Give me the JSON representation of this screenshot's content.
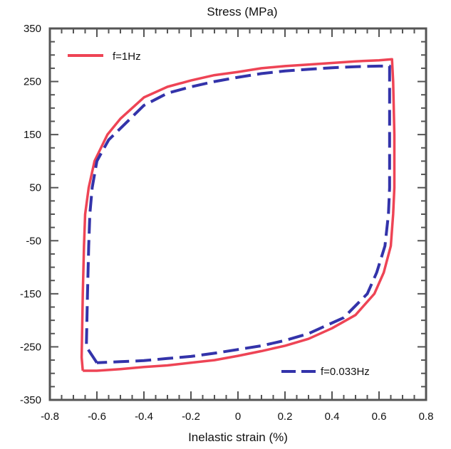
{
  "chart_data": {
    "type": "line",
    "title": "Stress  (MPa)",
    "xlabel": "Inelastic strain  (%)",
    "ylabel": "",
    "xlim": [
      -0.8,
      0.8
    ],
    "ylim": [
      -350,
      350
    ],
    "x_ticks": [
      "-0.8",
      "-0.6",
      "-0.4",
      "-0.2",
      "0",
      "0.2",
      "0.4",
      "0.6",
      "0.8"
    ],
    "y_ticks": [
      "350",
      "250",
      "150",
      "50",
      "-50",
      "-150",
      "-250",
      "-350"
    ],
    "series": [
      {
        "name": "f=1Hz",
        "color": "#ee4455",
        "line_style": "solid",
        "points": [
          [
            -0.66,
            -295
          ],
          [
            -0.665,
            -270
          ],
          [
            -0.66,
            -150
          ],
          [
            -0.655,
            -60
          ],
          [
            -0.65,
            0
          ],
          [
            -0.635,
            50
          ],
          [
            -0.61,
            100
          ],
          [
            -0.555,
            150
          ],
          [
            -0.5,
            180
          ],
          [
            -0.4,
            220
          ],
          [
            -0.3,
            240
          ],
          [
            -0.2,
            252
          ],
          [
            -0.1,
            262
          ],
          [
            0.0,
            268
          ],
          [
            0.1,
            275
          ],
          [
            0.2,
            279
          ],
          [
            0.3,
            282
          ],
          [
            0.4,
            285
          ],
          [
            0.5,
            288
          ],
          [
            0.6,
            290
          ],
          [
            0.655,
            292
          ],
          [
            0.66,
            250
          ],
          [
            0.665,
            150
          ],
          [
            0.665,
            50
          ],
          [
            0.66,
            0
          ],
          [
            0.65,
            -60
          ],
          [
            0.62,
            -110
          ],
          [
            0.58,
            -150
          ],
          [
            0.5,
            -190
          ],
          [
            0.4,
            -215
          ],
          [
            0.3,
            -235
          ],
          [
            0.2,
            -248
          ],
          [
            0.1,
            -258
          ],
          [
            0.0,
            -267
          ],
          [
            -0.1,
            -275
          ],
          [
            -0.2,
            -280
          ],
          [
            -0.3,
            -285
          ],
          [
            -0.4,
            -288
          ],
          [
            -0.5,
            -292
          ],
          [
            -0.6,
            -295
          ],
          [
            -0.66,
            -295
          ]
        ]
      },
      {
        "name": "f=0.033Hz",
        "color": "#3333aa",
        "line_style": "dashed",
        "points": [
          [
            -0.6,
            -280
          ],
          [
            -0.645,
            -250
          ],
          [
            -0.64,
            -150
          ],
          [
            -0.635,
            -60
          ],
          [
            -0.63,
            0
          ],
          [
            -0.62,
            50
          ],
          [
            -0.6,
            100
          ],
          [
            -0.55,
            140
          ],
          [
            -0.4,
            205
          ],
          [
            -0.3,
            228
          ],
          [
            -0.2,
            240
          ],
          [
            -0.1,
            250
          ],
          [
            0.0,
            258
          ],
          [
            0.1,
            265
          ],
          [
            0.2,
            270
          ],
          [
            0.3,
            273
          ],
          [
            0.4,
            276
          ],
          [
            0.5,
            278
          ],
          [
            0.6,
            279
          ],
          [
            0.645,
            279
          ],
          [
            0.645,
            150
          ],
          [
            0.645,
            50
          ],
          [
            0.64,
            0
          ],
          [
            0.625,
            -60
          ],
          [
            0.59,
            -110
          ],
          [
            0.55,
            -150
          ],
          [
            0.45,
            -195
          ],
          [
            0.3,
            -225
          ],
          [
            0.2,
            -238
          ],
          [
            0.1,
            -248
          ],
          [
            0.0,
            -255
          ],
          [
            -0.1,
            -262
          ],
          [
            -0.2,
            -268
          ],
          [
            -0.3,
            -272
          ],
          [
            -0.4,
            -276
          ],
          [
            -0.5,
            -278
          ],
          [
            -0.6,
            -280
          ]
        ]
      }
    ],
    "legend": [
      {
        "label": "f=1Hz",
        "position": "top-left"
      },
      {
        "label": "f=0.033Hz",
        "position": "bottom-right"
      }
    ],
    "grid": false
  }
}
